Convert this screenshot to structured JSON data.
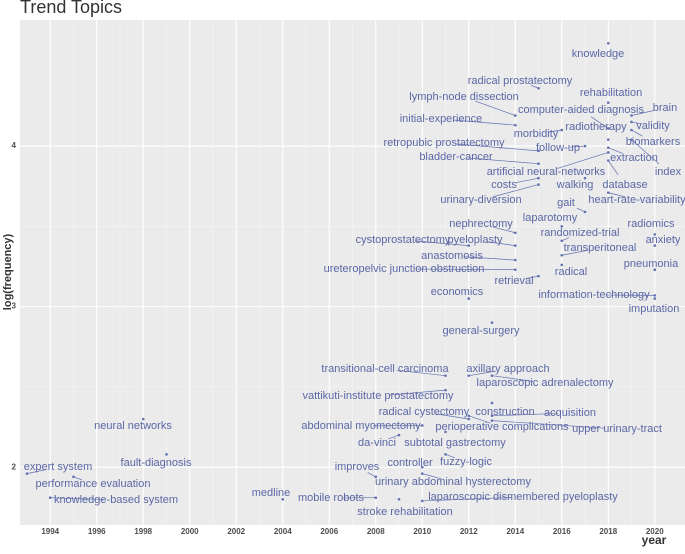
{
  "chart_data": {
    "type": "scatter",
    "title": "Trend Topics",
    "xlabel": "year",
    "ylabel": "log(frequency)",
    "color": "#6170b0",
    "label_color": "#5b68a6",
    "grid": true,
    "xlim": [
      1992.7,
      2021.3
    ],
    "ylim": [
      1.64,
      4.785
    ],
    "xticks": [
      1994,
      1996,
      1998,
      2000,
      2002,
      2004,
      2006,
      2008,
      2010,
      2012,
      2014,
      2016,
      2018,
      2020
    ],
    "yticks": [
      2,
      3,
      4
    ],
    "labels": [
      "knowledge",
      "radical prostatectomy",
      "rehabilitation",
      "lymph-node dissection",
      "computer-aided diagnosis",
      "brain",
      "initial-experience",
      "radiotherapy",
      "validity",
      "morbidity",
      "retropubic prostatectomy",
      "biomarkers",
      "follow-up",
      "bladder-cancer",
      "extraction",
      "artificial neural-networks",
      "index",
      "costs",
      "walking",
      "database",
      "urinary-diversion",
      "gait",
      "heart-rate-variability",
      "nephrectomy",
      "laparotomy",
      "radiomics",
      "randomized-trial",
      "cystoprostatectomy",
      "pyeloplasty",
      "anxiety",
      "transperitoneal",
      "anastomosis",
      "pneumonia",
      "ureteropelvic junction obstruction",
      "radical",
      "retrieval",
      "economics",
      "information-technology",
      "imputation",
      "general-surgery",
      "transitional-cell carcinoma",
      "axillary approach",
      "laparoscopic adrenalectomy",
      "vattikuti-institute prostatectomy",
      "radical cystectomy",
      "construction",
      "acquisition",
      "neural networks",
      "abdominal myomectomy",
      "perioperative complications",
      "upper urinary-tract",
      "da-vinci",
      "subtotal gastrectomy",
      "fault-diagnosis",
      "fuzzy-logic",
      "expert system",
      "improves",
      "controller",
      "urinary abdominal hysterectomy",
      "performance evaluation",
      "medline",
      "mobile robots",
      "laparoscopic dismembered pyeloplasty",
      "knowledge-based system",
      "stroke rehabilitation"
    ],
    "x": [
      2018,
      2015,
      2018,
      2014,
      2018,
      2019,
      2014,
      2018,
      2019,
      2016,
      2015,
      2019,
      2017,
      2015,
      2018,
      2018,
      2019,
      2015,
      2017,
      2018,
      2015,
      2017,
      2018,
      2014,
      2016,
      2020,
      2016,
      2012,
      2014,
      2020,
      2016,
      2014,
      2020,
      2014,
      2016,
      2015,
      2012,
      2020,
      2020,
      2013,
      2011,
      2012,
      2013,
      2011,
      2012,
      2013,
      2013,
      1998,
      2010,
      2012,
      2013,
      2009,
      2011,
      1999,
      2011,
      1993,
      2008,
      2010,
      2010,
      1995,
      2004,
      2008,
      2010,
      1994,
      2009
    ],
    "values": [
      4.64,
      4.36,
      4.27,
      4.19,
      4.11,
      4.19,
      4.13,
      4.04,
      4.15,
      4.1,
      3.97,
      4.1,
      4.0,
      3.89,
      3.99,
      3.96,
      4.04,
      3.8,
      3.8,
      3.91,
      3.76,
      3.59,
      3.71,
      3.46,
      3.5,
      3.45,
      3.41,
      3.38,
      3.38,
      3.38,
      3.32,
      3.29,
      3.23,
      3.23,
      3.26,
      3.19,
      3.05,
      3.07,
      3.05,
      2.9,
      2.57,
      2.57,
      2.57,
      2.48,
      2.3,
      2.4,
      2.32,
      2.3,
      2.26,
      2.32,
      2.29,
      2.2,
      2.22,
      2.08,
      2.08,
      1.96,
      1.94,
      2.0,
      1.96,
      1.94,
      1.8,
      1.81,
      1.79,
      1.81,
      1.8
    ]
  }
}
